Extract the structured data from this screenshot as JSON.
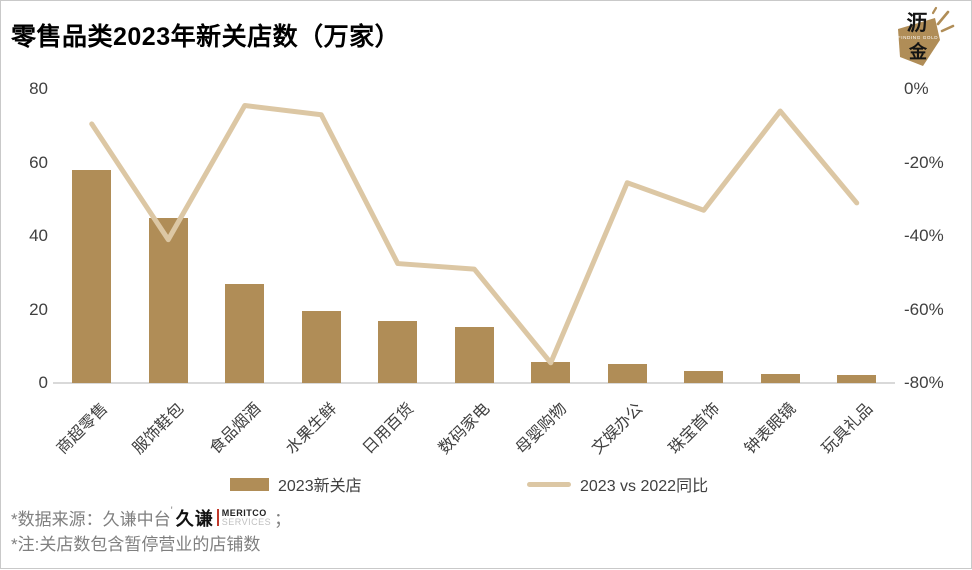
{
  "title": "零售品类2023年新关店数（万家）",
  "brand": {
    "name": "沥金 Finding Gold",
    "char_top": "沥",
    "char_bottom": "金",
    "subtitle": "FINDING GOLD",
    "gold": "#b08d57"
  },
  "chart_data": {
    "type": "bar+line combo",
    "title": "零售品类2023年新关店数（万家）",
    "categories": [
      "商超零售",
      "服饰鞋包",
      "食品烟酒",
      "水果生鲜",
      "日用百货",
      "数码家电",
      "母婴购物",
      "文娱办公",
      "珠宝首饰",
      "钟表眼镜",
      "玩具礼品"
    ],
    "series": [
      {
        "name": "2023新关店",
        "type": "bar",
        "axis": "left",
        "unit": "万家",
        "color": "#b08d57",
        "values": [
          58,
          45,
          27,
          19.5,
          17,
          15.3,
          5.6,
          5.2,
          3.3,
          2.5,
          2.3
        ]
      },
      {
        "name": "2023 vs 2022同比",
        "type": "line",
        "axis": "right",
        "unit": "%",
        "color": "#dcc7a4",
        "values": [
          -9.5,
          -41,
          -4.5,
          -7,
          -47.5,
          -49,
          -74.5,
          -25.5,
          -33,
          -6,
          -31
        ]
      }
    ],
    "left_axis": {
      "ticks": [
        "80",
        "60",
        "40",
        "20",
        "0"
      ],
      "range": [
        0,
        80
      ]
    },
    "right_axis": {
      "ticks": [
        "0%",
        "-20%",
        "-40%",
        "-60%",
        "-80%"
      ],
      "range": [
        -80,
        0
      ]
    },
    "grid": false,
    "legend_position": "bottom"
  },
  "legend": {
    "bar_label": "2023新关店",
    "line_label": "2023 vs 2022同比"
  },
  "footnotes": {
    "source_prefix": "*数据来源：久谦中台",
    "source_mark": "'",
    "source_suffix": "；",
    "note": "*注:关店数包含暂停营业的店铺数",
    "meritco": {
      "cn": "久谦",
      "en_top": "MERITCO",
      "en_bottom": "SERVICES"
    }
  },
  "colors": {
    "bar": "#b08d57",
    "line": "#dcc7a4",
    "axis_line": "#d9d9d9",
    "tick_text": "#404040",
    "footnote_text": "#7f7f7f",
    "meritco_red": "#c0392b"
  }
}
